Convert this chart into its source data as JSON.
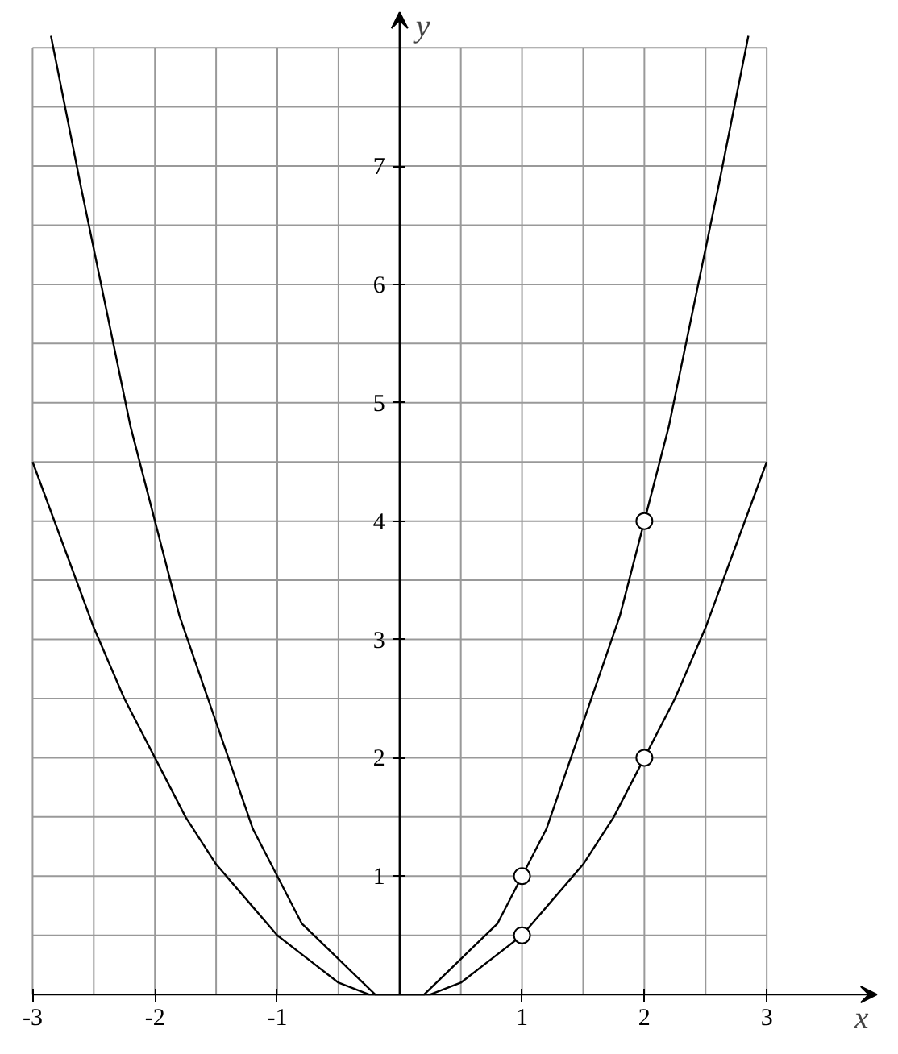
{
  "chart_data": {
    "type": "line",
    "xlabel": "x",
    "ylabel": "y",
    "xlim": [
      -3,
      3.9
    ],
    "ylim": [
      0,
      8.3
    ],
    "xticks": [
      -3,
      {
        "value": -2.5,
        "label": null
      },
      -2,
      {
        "value": -1.5,
        "label": null
      },
      -1,
      {
        "value": -0.5,
        "label": null
      },
      {
        "value": 0.5,
        "label": null
      },
      1,
      {
        "value": 1.5,
        "label": null
      },
      2,
      {
        "value": 2.5,
        "label": null
      },
      3
    ],
    "yticks": [
      {
        "value": 0.5,
        "label": null
      },
      1,
      {
        "value": 1.5,
        "label": null
      },
      2,
      {
        "value": 2.5,
        "label": null
      },
      3,
      {
        "value": 3.5,
        "label": null
      },
      4,
      {
        "value": 4.5,
        "label": null
      },
      5,
      {
        "value": 5.5,
        "label": null
      },
      6,
      {
        "value": 6.5,
        "label": null
      },
      7,
      {
        "value": 7.5,
        "label": null
      },
      {
        "value": 8,
        "label": null
      }
    ],
    "grid": true,
    "marker": "none",
    "line_style": "solid",
    "series": [
      {
        "color": "#000000",
        "x": [
          -2.85,
          -2.6,
          -2.4,
          -2.2,
          -2,
          -1.8,
          -1.6,
          -1.4,
          -1.2,
          -1,
          -0.8,
          -0.6,
          -0.4,
          -0.2,
          0,
          0.2,
          0.4,
          0.6,
          0.8,
          1,
          1.2,
          1.4,
          1.6,
          1.8,
          2,
          2.2,
          2.4,
          2.6,
          2.85
        ],
        "values": [
          8.1,
          6.8,
          5.8,
          4.8,
          4,
          3.2,
          2.6,
          2,
          1.4,
          1,
          0.6,
          0.4,
          0.2,
          0,
          0,
          0,
          0.2,
          0.4,
          0.6,
          1,
          1.4,
          2,
          2.6,
          3.2,
          4,
          4.8,
          5.8,
          6.8,
          8.1
        ]
      },
      {
        "color": "#000000",
        "x": [
          -3,
          -2.75,
          -2.5,
          -2.25,
          -2,
          -1.75,
          -1.5,
          -1.25,
          -1,
          -0.75,
          -0.5,
          -0.25,
          0,
          0.25,
          0.5,
          0.75,
          1,
          1.25,
          1.5,
          1.75,
          2,
          2.25,
          2.5,
          2.75,
          3
        ],
        "values": [
          4.5,
          3.8,
          3.1,
          2.5,
          2,
          1.5,
          1.1,
          0.8,
          0.5,
          0.3,
          0.1,
          0,
          0,
          0,
          0.1,
          0.3,
          0.5,
          0.8,
          1.1,
          1.5,
          2,
          2.5,
          3.1,
          3.8,
          4.5
        ]
      },
      {
        "type": "scatter",
        "color": "#ffffff",
        "marker": "circle",
        "x": [
          1,
          2,
          1,
          2
        ],
        "values": [
          1,
          4,
          0.5,
          2
        ]
      }
    ]
  }
}
